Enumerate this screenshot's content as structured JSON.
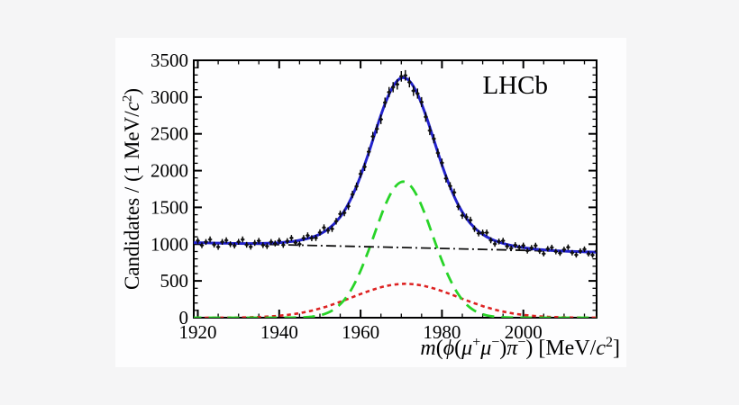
{
  "figure": {
    "experiment_label": "LHCb",
    "background_color": "#f5f5f6",
    "panel_color": "#fdfdfe",
    "frame_color": "#000000"
  },
  "chart_data": {
    "type": "scatter+line (mass spectrum with fit components)",
    "title": "",
    "xlabel": "m(phi(mu+ mu-) pi-) [MeV/c^2]",
    "ylabel": "Candidates / (1 MeV/c^2)",
    "xlabel_parts": [
      {
        "t": "m",
        "i": true
      },
      {
        "t": "(",
        "i": false
      },
      {
        "t": "ϕ",
        "i": true
      },
      {
        "t": "(",
        "i": false
      },
      {
        "t": "μ",
        "i": true
      },
      {
        "t": "+",
        "sup": true
      },
      {
        "t": "μ",
        "i": true
      },
      {
        "t": "−",
        "sup": true
      },
      {
        "t": ")",
        "i": false
      },
      {
        "t": "π",
        "i": true
      },
      {
        "t": "−",
        "sup": true
      },
      {
        "t": ") [MeV/",
        "i": false
      },
      {
        "t": "c",
        "i": true
      },
      {
        "t": "2",
        "sup": true
      },
      {
        "t": "]",
        "i": false
      }
    ],
    "ylabel_parts": [
      {
        "t": "Candidates / (1 MeV/",
        "i": false
      },
      {
        "t": "c",
        "i": true
      },
      {
        "t": "2",
        "sup": true
      },
      {
        "t": ")",
        "i": false
      }
    ],
    "xlim": [
      1919,
      2018
    ],
    "ylim": [
      0,
      3500
    ],
    "x_major_ticks": [
      1920,
      1940,
      1960,
      1980,
      2000
    ],
    "x_minor_step": 5,
    "y_major_ticks": [
      0,
      500,
      1000,
      1500,
      2000,
      2500,
      3000,
      3500
    ],
    "y_minor_step": 100,
    "grid": false,
    "legend": "none",
    "annotation": {
      "text": "LHCb",
      "x": 1998,
      "y": 3050
    },
    "series": [
      {
        "name": "broad-background",
        "style": "short-dash",
        "color": "#dd2222",
        "x0": 1918,
        "dx": 2,
        "y": [
          0,
          0,
          0,
          1,
          1,
          2,
          3,
          5,
          8,
          12,
          18,
          27,
          38,
          53,
          72,
          96,
          125,
          158,
          196,
          236,
          279,
          322,
          362,
          398,
          427,
          448,
          459,
          459,
          448,
          427,
          398,
          362,
          322,
          279,
          236,
          196,
          158,
          125,
          96,
          72,
          53,
          38,
          27,
          18,
          12,
          8,
          5,
          3,
          2,
          1,
          1
        ]
      },
      {
        "name": "signal",
        "style": "long-dash",
        "color": "#28d428",
        "x0": 1918,
        "dx": 2,
        "y": [
          0,
          0,
          0,
          0,
          0,
          0,
          0,
          0,
          0,
          0,
          0,
          0,
          1,
          2,
          5,
          14,
          32,
          68,
          134,
          243,
          410,
          639,
          921,
          1230,
          1522,
          1742,
          1846,
          1810,
          1644,
          1382,
          1075,
          775,
          517,
          319,
          182,
          96,
          47,
          21,
          9,
          4,
          2,
          1,
          0,
          0,
          0,
          0,
          0,
          0,
          0,
          0,
          0
        ]
      },
      {
        "name": "combinatorial-background",
        "style": "dash-dot",
        "color": "#111111",
        "x0": 1919,
        "dx": 99,
        "y": [
          1019,
          893
        ]
      },
      {
        "name": "total-fit",
        "style": "solid",
        "color": "#2222cc",
        "x0": 1918,
        "dx": 2,
        "y": [
          1021,
          1020,
          1018,
          1015,
          1013,
          1011,
          1010,
          1009,
          1009,
          1011,
          1015,
          1020,
          1029,
          1043,
          1064,
          1093,
          1137,
          1204,
          1304,
          1451,
          1661,
          1928,
          2245,
          2590,
          2908,
          3146,
          3260,
          3220,
          3040,
          2755,
          2418,
          2078,
          1778,
          1533,
          1352,
          1222,
          1133,
          1071,
          1028,
          995,
          972,
          953,
          938,
          927,
          918,
          911,
          906,
          901,
          898,
          894,
          891
        ]
      }
    ],
    "data_points": {
      "name": "candidates-histogram",
      "color": "#111111",
      "x0": 1920,
      "dx": 1,
      "y": [
        1048,
        984,
        1030,
        1064,
        993,
        962,
        1031,
        1052,
        999,
        980,
        1032,
        1064,
        991,
        964,
        1017,
        1045,
        986,
        973,
        1030,
        1009,
        1048,
        989,
        1041,
        1084,
        1021,
        1001,
        1082,
        1118,
        1081,
        1084,
        1159,
        1225,
        1186,
        1208,
        1312,
        1411,
        1426,
        1515,
        1676,
        1785,
        1956,
        2051,
        2257,
        2465,
        2568,
        2697,
        2926,
        3067,
        3134,
        3173,
        3282,
        3295,
        3202,
        3085,
        3048,
        2932,
        2730,
        2546,
        2433,
        2240,
        2106,
        1893,
        1790,
        1703,
        1511,
        1390,
        1370,
        1327,
        1210,
        1147,
        1155,
        1157,
        1053,
        1004,
        1036,
        1046,
        970,
        943,
        987,
        954,
        981,
        910,
        950,
        980,
        905,
        870,
        936,
        954,
        899,
        878,
        928,
        958,
        883,
        854,
        906,
        931,
        869,
        852,
        906
      ]
    }
  }
}
